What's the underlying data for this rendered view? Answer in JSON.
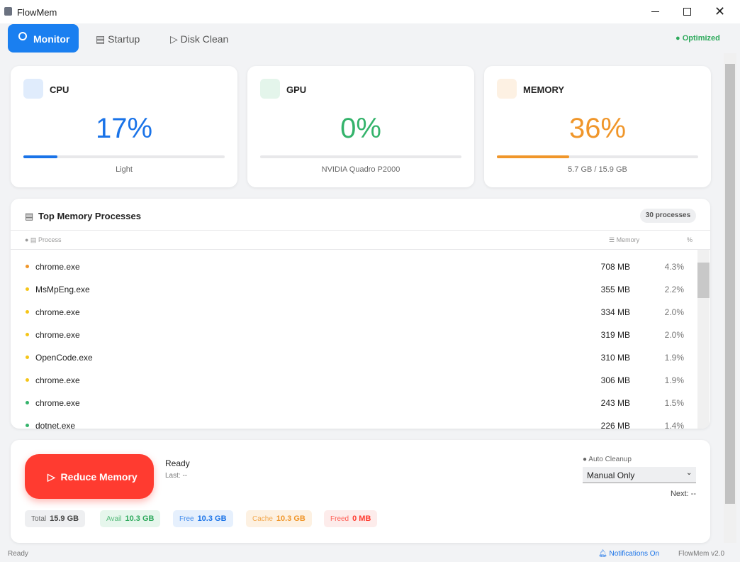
{
  "window": {
    "title": "FlowMem"
  },
  "tabs": [
    "Monitor",
    "Startup",
    "Disk Clean"
  ],
  "status_badge": "Optimized",
  "cards": [
    {
      "name": "CPU",
      "value": 17,
      "value_label": "17%",
      "detail": "Light",
      "color": "#1a73e8"
    },
    {
      "name": "GPU",
      "value": 0,
      "value_label": "0%",
      "detail": "NVIDIA Quadro P2000",
      "color": "#34b36b"
    },
    {
      "name": "MEMORY",
      "value": 36,
      "value_label": "36%",
      "detail": "5.7 GB / 15.9 GB",
      "color": "#f0962a"
    }
  ],
  "processes": {
    "title": "Top Memory Processes",
    "count": "30 processes",
    "columns": [
      "Process",
      "Memory",
      "%"
    ],
    "rows": [
      {
        "name": "chrome.exe",
        "memory": "708 MB",
        "percent": "4.3%",
        "color": "#f0962a"
      },
      {
        "name": "MsMpEng.exe",
        "memory": "355 MB",
        "percent": "2.2%",
        "color": "#f5c518"
      },
      {
        "name": "chrome.exe",
        "memory": "334 MB",
        "percent": "2.0%",
        "color": "#f5c518"
      },
      {
        "name": "chrome.exe",
        "memory": "319 MB",
        "percent": "2.0%",
        "color": "#f5c518"
      },
      {
        "name": "OpenCode.exe",
        "memory": "310 MB",
        "percent": "1.9%",
        "color": "#f5c518"
      },
      {
        "name": "chrome.exe",
        "memory": "306 MB",
        "percent": "1.9%",
        "color": "#f5c518"
      },
      {
        "name": "chrome.exe",
        "memory": "243 MB",
        "percent": "1.5%",
        "color": "#34b36b"
      },
      {
        "name": "dotnet.exe",
        "memory": "226 MB",
        "percent": "1.4%",
        "color": "#34b36b"
      }
    ]
  },
  "actions": {
    "button": "Reduce Memory",
    "status": "Ready",
    "last": "Last: --",
    "auto_cleanup_label": "Auto Cleanup",
    "auto_cleanup_value": "Manual Only",
    "next": "Next: --",
    "stats": [
      {
        "label": "Total",
        "value": "15.9 GB",
        "color": "#444",
        "bg": "#eeeff1"
      },
      {
        "label": "Avail",
        "value": "10.3 GB",
        "color": "#2eaa5c",
        "bg": "#e6f6ec"
      },
      {
        "label": "Free",
        "value": "10.3 GB",
        "color": "#1a73e8",
        "bg": "#e6f0fd"
      },
      {
        "label": "Cache",
        "value": "10.3 GB",
        "color": "#f0962a",
        "bg": "#fdf1e2"
      },
      {
        "label": "Freed",
        "value": "0 MB",
        "color": "#ff3b30",
        "bg": "#fdeceb"
      }
    ]
  },
  "status_bar": {
    "left": "Ready",
    "notifications": "Notifications On",
    "version": "FlowMem v2.0"
  }
}
